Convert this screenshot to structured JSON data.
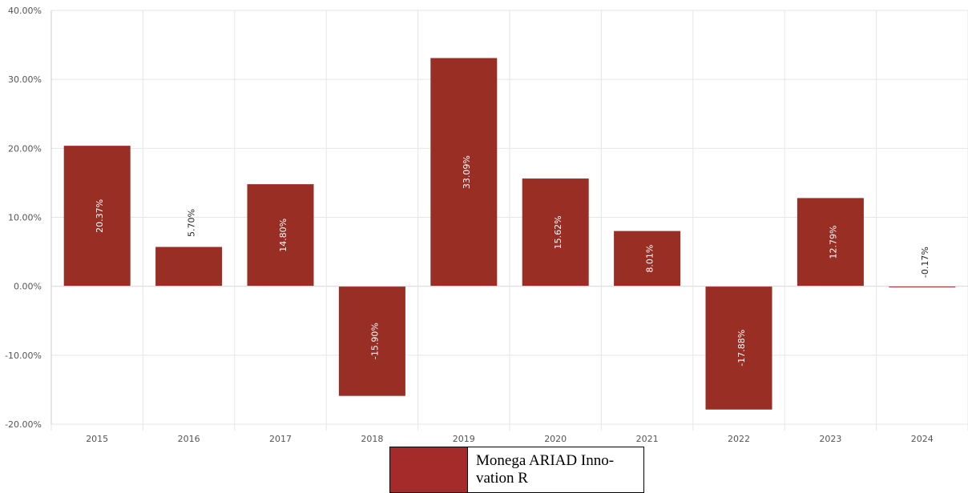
{
  "chart_data": {
    "type": "bar",
    "categories": [
      "2015",
      "2016",
      "2017",
      "2018",
      "2019",
      "2020",
      "2021",
      "2022",
      "2023",
      "2024"
    ],
    "series": [
      {
        "name": "Monega ARIAD Innovation R",
        "values": [
          20.37,
          5.7,
          14.8,
          -15.9,
          33.09,
          15.62,
          8.01,
          -17.88,
          12.79,
          -0.17
        ]
      }
    ],
    "value_labels": [
      "20.37%",
      "5.70%",
      "14.80%",
      "-15.90%",
      "33.09%",
      "15.62%",
      "8.01%",
      "-17.88%",
      "12.79%",
      "-0.17%"
    ],
    "y_ticks": [
      "-20.00%",
      "-10.00%",
      "0.00%",
      "10.00%",
      "20.00%",
      "30.00%",
      "40.00%"
    ],
    "y_tick_values": [
      -20,
      -10,
      0,
      10,
      20,
      30,
      40
    ],
    "ylim": [
      -20,
      40
    ],
    "grid": true,
    "legend_position": "bottom",
    "colors": {
      "bar": "#992e24",
      "grid": "#e6e6e6",
      "legend_swatch": "#a52a2a"
    }
  },
  "legend": {
    "label_line1": "Monega ARIAD Inno-",
    "label_line2": "vation R"
  }
}
